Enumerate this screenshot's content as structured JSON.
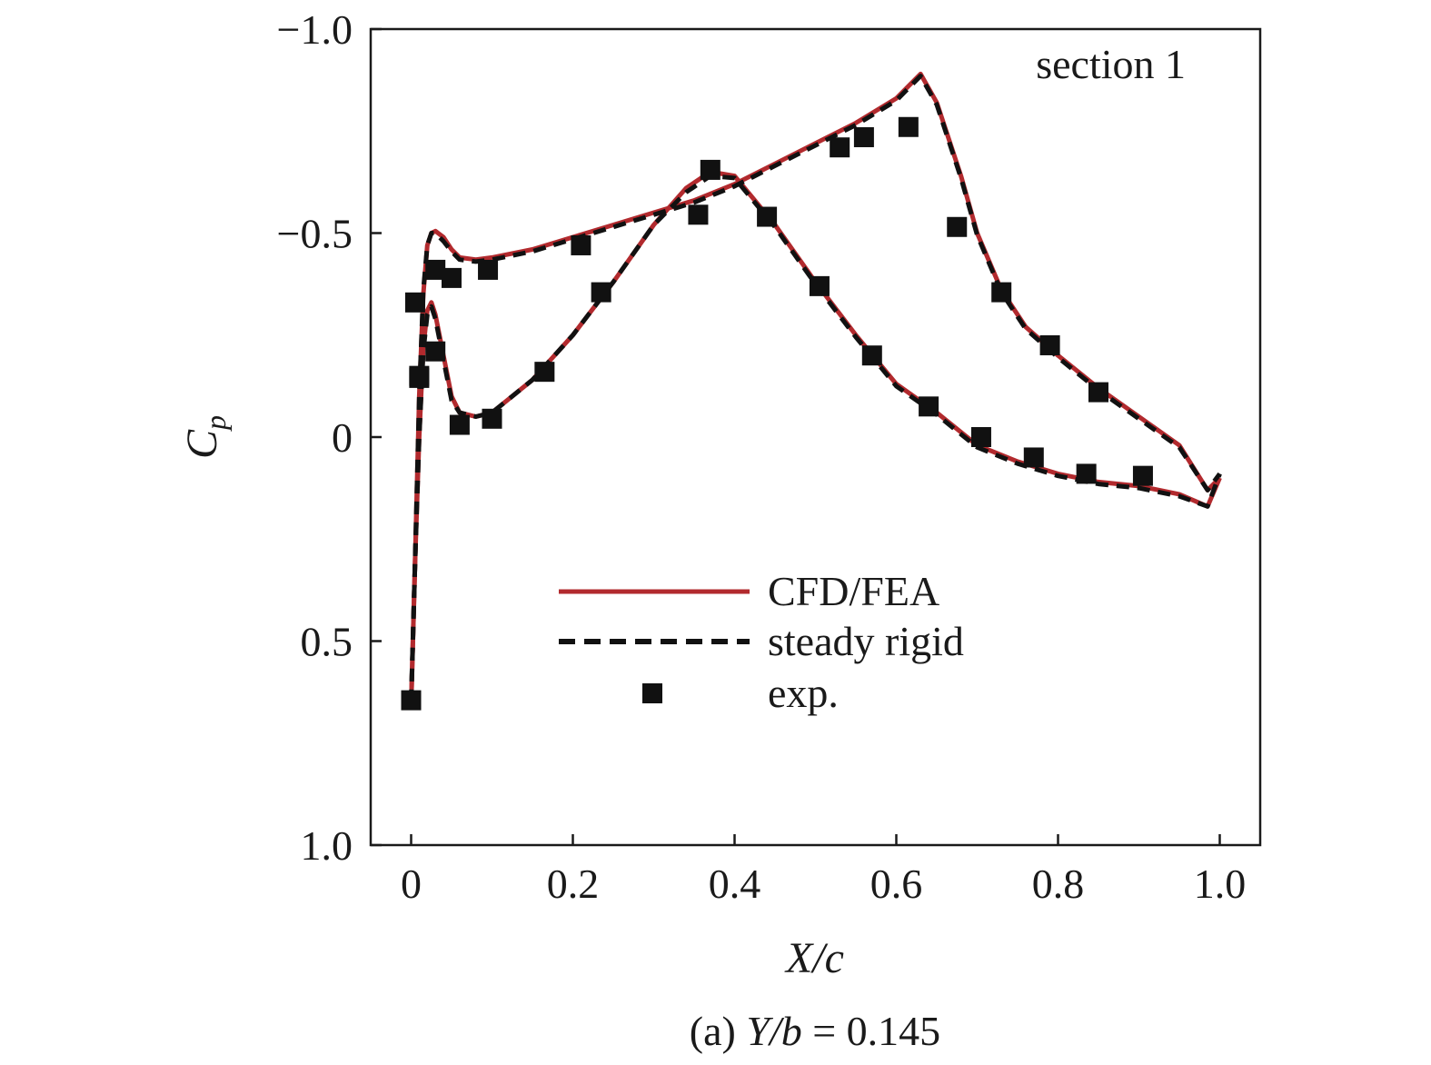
{
  "chart_data": {
    "type": "line",
    "annotation": "section 1",
    "xlabel": "X/c",
    "ylabel": "Cp",
    "ylabel_main": "C",
    "ylabel_sub": "p",
    "caption": {
      "prefix": "(a) ",
      "variable": "Y/b",
      "suffix": " = 0.145"
    },
    "xlim": [
      -0.05,
      1.05
    ],
    "ylim": [
      -1.0,
      1.0
    ],
    "y_inverted": true,
    "grid": false,
    "legend_position": "center-right",
    "x_ticks": [
      {
        "value": 0,
        "label": "0"
      },
      {
        "value": 0.2,
        "label": "0.2"
      },
      {
        "value": 0.4,
        "label": "0.4"
      },
      {
        "value": 0.6,
        "label": "0.6"
      },
      {
        "value": 0.8,
        "label": "0.8"
      },
      {
        "value": 1.0,
        "label": "1.0"
      }
    ],
    "y_ticks": [
      {
        "value": -1.0,
        "label": "−1.0"
      },
      {
        "value": -0.5,
        "label": "−0.5"
      },
      {
        "value": 0,
        "label": "0"
      },
      {
        "value": 0.5,
        "label": "0.5"
      },
      {
        "value": 1.0,
        "label": "1.0"
      }
    ],
    "series": [
      {
        "name": "CFD/FEA",
        "color": "#b22a2e",
        "style": "solid",
        "upper": {
          "x": [
            0.0,
            0.005,
            0.01,
            0.015,
            0.02,
            0.025,
            0.03,
            0.04,
            0.05,
            0.06,
            0.08,
            0.1,
            0.15,
            0.2,
            0.25,
            0.3,
            0.35,
            0.4,
            0.45,
            0.5,
            0.55,
            0.6,
            0.63,
            0.65,
            0.68,
            0.7,
            0.73,
            0.76,
            0.8,
            0.85,
            0.9,
            0.95,
            0.985,
            1.0
          ],
          "y": [
            0.66,
            0.3,
            -0.1,
            -0.35,
            -0.47,
            -0.5,
            -0.505,
            -0.49,
            -0.46,
            -0.44,
            -0.435,
            -0.44,
            -0.46,
            -0.49,
            -0.52,
            -0.55,
            -0.58,
            -0.62,
            -0.67,
            -0.72,
            -0.77,
            -0.83,
            -0.89,
            -0.82,
            -0.64,
            -0.5,
            -0.36,
            -0.27,
            -0.2,
            -0.12,
            -0.05,
            0.02,
            0.13,
            0.1
          ]
        },
        "lower": {
          "x": [
            0.0,
            0.005,
            0.01,
            0.015,
            0.02,
            0.025,
            0.03,
            0.04,
            0.05,
            0.06,
            0.08,
            0.1,
            0.15,
            0.2,
            0.25,
            0.3,
            0.34,
            0.37,
            0.4,
            0.45,
            0.5,
            0.55,
            0.6,
            0.65,
            0.7,
            0.75,
            0.8,
            0.85,
            0.9,
            0.95,
            0.985,
            1.0
          ],
          "y": [
            0.66,
            0.3,
            0.0,
            -0.22,
            -0.31,
            -0.33,
            -0.3,
            -0.2,
            -0.1,
            -0.06,
            -0.05,
            -0.06,
            -0.14,
            -0.25,
            -0.38,
            -0.52,
            -0.61,
            -0.65,
            -0.64,
            -0.52,
            -0.38,
            -0.25,
            -0.13,
            -0.06,
            0.02,
            0.06,
            0.09,
            0.11,
            0.12,
            0.14,
            0.17,
            0.1
          ]
        }
      },
      {
        "name": "steady rigid",
        "color": "#111111",
        "style": "dashed",
        "upper": {
          "x": [
            0.0,
            0.005,
            0.01,
            0.015,
            0.02,
            0.025,
            0.03,
            0.04,
            0.05,
            0.06,
            0.08,
            0.1,
            0.15,
            0.2,
            0.25,
            0.3,
            0.35,
            0.4,
            0.45,
            0.5,
            0.55,
            0.6,
            0.63,
            0.65,
            0.68,
            0.7,
            0.73,
            0.76,
            0.8,
            0.85,
            0.9,
            0.95,
            0.985,
            1.0
          ],
          "y": [
            0.65,
            0.3,
            -0.1,
            -0.36,
            -0.47,
            -0.5,
            -0.5,
            -0.48,
            -0.455,
            -0.435,
            -0.43,
            -0.435,
            -0.455,
            -0.485,
            -0.515,
            -0.545,
            -0.575,
            -0.615,
            -0.665,
            -0.715,
            -0.765,
            -0.825,
            -0.885,
            -0.815,
            -0.635,
            -0.495,
            -0.355,
            -0.265,
            -0.195,
            -0.115,
            -0.045,
            0.025,
            0.13,
            0.09
          ]
        },
        "lower": {
          "x": [
            0.0,
            0.005,
            0.01,
            0.015,
            0.02,
            0.025,
            0.03,
            0.04,
            0.05,
            0.06,
            0.08,
            0.1,
            0.15,
            0.2,
            0.25,
            0.3,
            0.34,
            0.37,
            0.4,
            0.45,
            0.5,
            0.55,
            0.6,
            0.65,
            0.7,
            0.75,
            0.8,
            0.85,
            0.9,
            0.95,
            0.985,
            1.0
          ],
          "y": [
            0.65,
            0.3,
            0.0,
            -0.21,
            -0.3,
            -0.32,
            -0.29,
            -0.19,
            -0.09,
            -0.06,
            -0.05,
            -0.06,
            -0.14,
            -0.25,
            -0.38,
            -0.52,
            -0.6,
            -0.64,
            -0.635,
            -0.515,
            -0.375,
            -0.245,
            -0.125,
            -0.055,
            0.025,
            0.065,
            0.095,
            0.115,
            0.125,
            0.145,
            0.17,
            0.09
          ]
        }
      },
      {
        "name": "exp.",
        "color": "#111111",
        "style": "marker",
        "x": [
          0.005,
          0.01,
          0.03,
          0.05,
          0.095,
          0.21,
          0.355,
          0.44,
          0.53,
          0.56,
          0.615,
          0.675,
          0.01,
          0.03,
          0.06,
          0.1,
          0.165,
          0.235,
          0.37,
          0.505,
          0.57,
          0.64,
          0.705,
          0.77,
          0.835,
          0.905,
          0.73,
          0.79,
          0.85,
          0.0
        ],
        "y": [
          -0.33,
          -0.15,
          -0.41,
          -0.39,
          -0.41,
          -0.47,
          -0.545,
          -0.54,
          -0.71,
          -0.735,
          -0.76,
          -0.515,
          -0.145,
          -0.21,
          -0.03,
          -0.045,
          -0.16,
          -0.355,
          -0.655,
          -0.37,
          -0.2,
          -0.075,
          0.0,
          0.05,
          0.09,
          0.095,
          -0.355,
          -0.225,
          -0.11,
          0.645
        ]
      }
    ]
  }
}
